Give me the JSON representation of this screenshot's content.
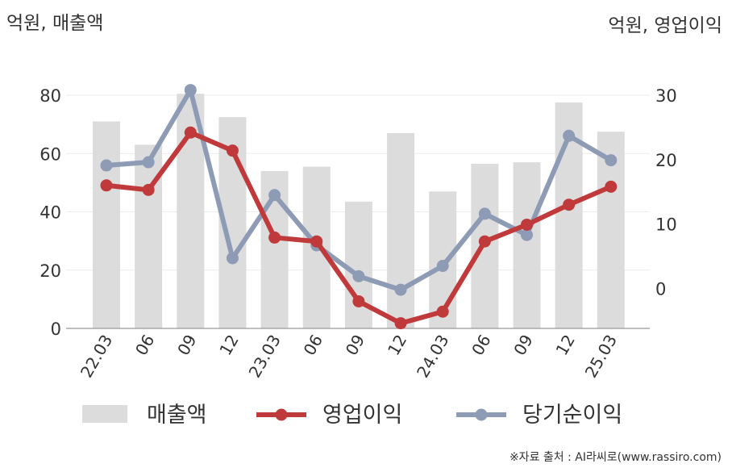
{
  "chart_data": {
    "type": "bar+line",
    "left_axis_label": "억원, 매출액",
    "right_axis_label": "억원, 영업이익",
    "categories": [
      "22.03",
      "06",
      "09",
      "12",
      "23.03",
      "06",
      "09",
      "12",
      "24.03",
      "06",
      "09",
      "12",
      "25.03"
    ],
    "left_axis": {
      "ticks": [
        0,
        20,
        40,
        60,
        80
      ],
      "range": [
        0,
        80
      ]
    },
    "right_axis": {
      "ticks": [
        0,
        10,
        20,
        30
      ],
      "range": [
        -6.2,
        30
      ]
    },
    "series": [
      {
        "name": "매출액",
        "type": "bar",
        "axis": "left",
        "color": "#dcdcdc",
        "values": [
          71,
          63,
          80.5,
          72.5,
          54,
          55.5,
          43.5,
          67,
          47,
          56.5,
          57,
          77.5,
          67.5
        ]
      },
      {
        "name": "영업이익",
        "type": "line",
        "axis": "right",
        "color": "#c0393b",
        "values": [
          16,
          15.3,
          24.2,
          21.4,
          7.9,
          7.3,
          -2,
          -5.4,
          -3.6,
          7.3,
          9.9,
          13,
          15.8
        ]
      },
      {
        "name": "당기순이익",
        "type": "line",
        "axis": "right",
        "color": "#8d9bb5",
        "values": [
          19.1,
          19.6,
          30.8,
          4.7,
          14.5,
          6.7,
          1.9,
          -0.2,
          3.5,
          11.6,
          8.3,
          23.7,
          19.9
        ]
      }
    ],
    "grid": true,
    "legend_position": "bottom"
  },
  "source_note": "※자료 출처 : AI라씨로(www.rassiro.com)"
}
